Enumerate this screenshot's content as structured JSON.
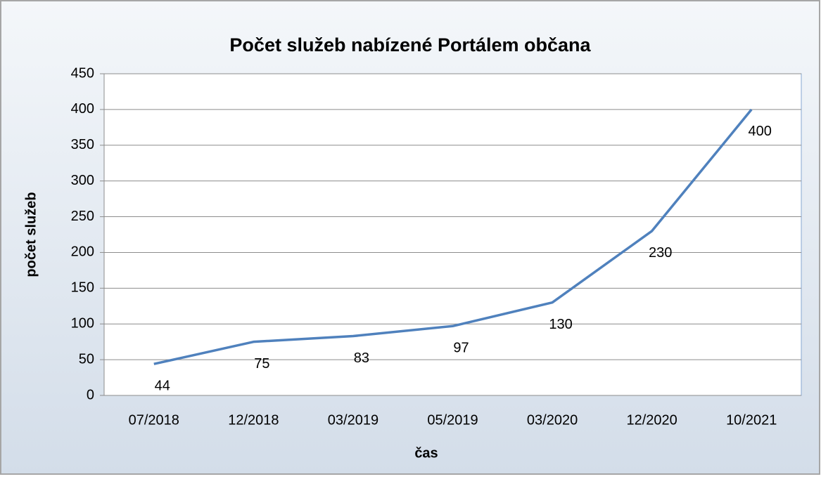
{
  "chart_data": {
    "type": "line",
    "title": "Počet služeb nabízené Portálem občana",
    "x_label": "čas",
    "y_label": "počet služeb",
    "categories": [
      "07/2018",
      "12/2018",
      "03/2019",
      "05/2019",
      "03/2020",
      "12/2020",
      "10/2021"
    ],
    "values": [
      44,
      75,
      83,
      97,
      130,
      230,
      400
    ],
    "color": "#4f81bd",
    "ylim": [
      0,
      450
    ],
    "yticks": [
      0,
      50,
      100,
      150,
      200,
      250,
      300,
      350,
      400,
      450
    ],
    "grid": true,
    "data_labels": true
  }
}
